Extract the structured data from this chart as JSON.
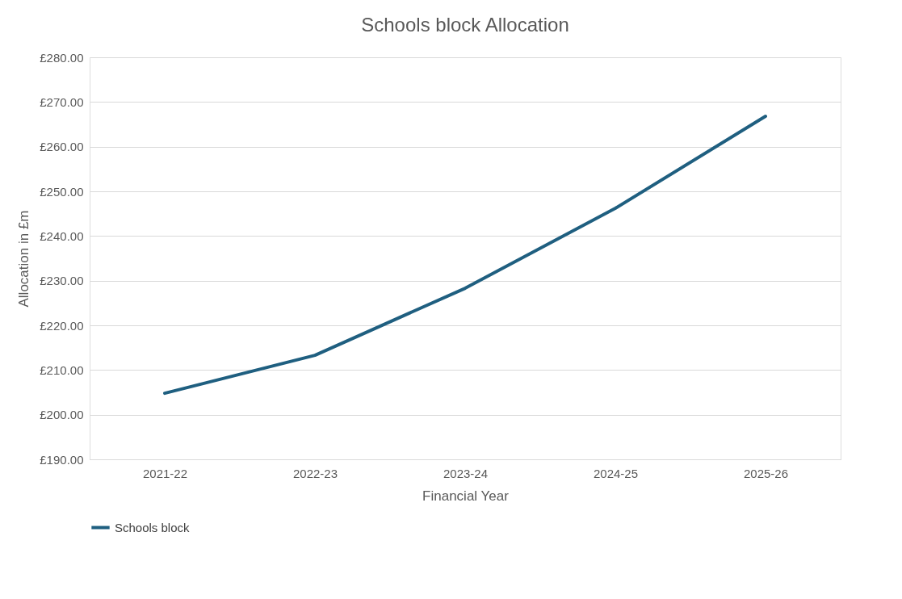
{
  "chart_data": {
    "type": "line",
    "title": "Schools block Allocation",
    "xlabel": "Financial Year",
    "ylabel": "Allocation in £m",
    "categories": [
      "2021-22",
      "2022-23",
      "2023-24",
      "2024-25",
      "2025-26"
    ],
    "series": [
      {
        "name": "Schools block",
        "color": "#1f5f80",
        "values": [
          204.8,
          213.3,
          228.3,
          246.2,
          266.8
        ]
      }
    ],
    "ylim": [
      190,
      280
    ],
    "yticks": [
      {
        "value": 190,
        "label": "£190.00"
      },
      {
        "value": 200,
        "label": "£200.00"
      },
      {
        "value": 210,
        "label": "£210.00"
      },
      {
        "value": 220,
        "label": "£220.00"
      },
      {
        "value": 230,
        "label": "£230.00"
      },
      {
        "value": 240,
        "label": "£240.00"
      },
      {
        "value": 250,
        "label": "£250.00"
      },
      {
        "value": 260,
        "label": "£260.00"
      },
      {
        "value": 270,
        "label": "£270.00"
      },
      {
        "value": 280,
        "label": "£280.00"
      }
    ],
    "grid": "y",
    "legend": "bottom",
    "marker": "none",
    "line_style": "solid"
  }
}
